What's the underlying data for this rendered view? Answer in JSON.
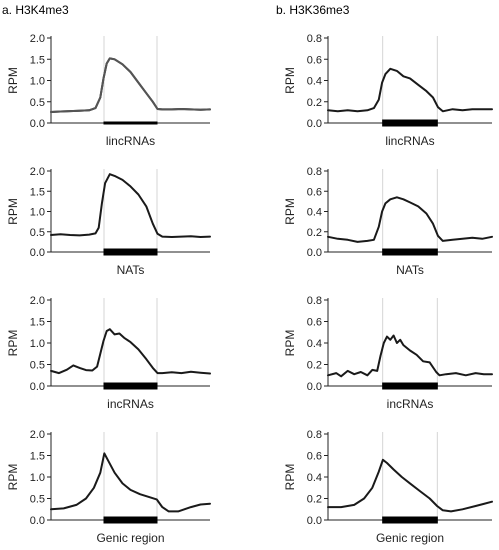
{
  "columns": [
    {
      "title": "a. H3K4me3"
    },
    {
      "title": "b. H3K36me3"
    }
  ],
  "colors": {
    "line": "#1a1a1a",
    "line_highlight": "#555555",
    "axis": "#222222",
    "grid": "#d6d6d6",
    "region": "#000000"
  },
  "chart_data": [
    {
      "type": "line",
      "column": "a. H3K4me3",
      "xlabel": "lincRNAs",
      "ylabel": "RPM",
      "ylim": [
        0,
        2.0
      ],
      "yticks": [
        "0.0",
        "0.5",
        "1.0",
        "1.5",
        "2.0"
      ],
      "region": [
        0.3333,
        0.6667
      ],
      "region_thickness": "thin",
      "line_color": "#555555",
      "x": [
        0,
        0.06,
        0.12,
        0.18,
        0.24,
        0.28,
        0.31,
        0.33,
        0.35,
        0.37,
        0.4,
        0.45,
        0.5,
        0.55,
        0.6,
        0.64,
        0.67,
        0.7,
        0.76,
        0.82,
        0.88,
        0.94,
        1.0
      ],
      "y": [
        0.26,
        0.27,
        0.28,
        0.29,
        0.3,
        0.35,
        0.6,
        1.05,
        1.4,
        1.52,
        1.5,
        1.38,
        1.2,
        0.95,
        0.7,
        0.5,
        0.33,
        0.32,
        0.32,
        0.33,
        0.32,
        0.31,
        0.32
      ]
    },
    {
      "type": "line",
      "column": "b. H3K36me3",
      "xlabel": "lincRNAs",
      "ylabel": "RPM",
      "ylim": [
        0,
        0.8
      ],
      "yticks": [
        "0.0",
        "0.2",
        "0.4",
        "0.6",
        "0.8"
      ],
      "region": [
        0.3333,
        0.6667
      ],
      "region_thickness": "thick",
      "x": [
        0,
        0.06,
        0.12,
        0.18,
        0.24,
        0.28,
        0.31,
        0.33,
        0.35,
        0.38,
        0.42,
        0.46,
        0.5,
        0.55,
        0.6,
        0.64,
        0.67,
        0.7,
        0.76,
        0.82,
        0.88,
        0.94,
        1.0
      ],
      "y": [
        0.12,
        0.11,
        0.12,
        0.11,
        0.12,
        0.14,
        0.22,
        0.38,
        0.46,
        0.51,
        0.49,
        0.44,
        0.42,
        0.36,
        0.3,
        0.24,
        0.15,
        0.11,
        0.13,
        0.12,
        0.13,
        0.13,
        0.13
      ]
    },
    {
      "type": "line",
      "column": "a. H3K4me3",
      "xlabel": "NATs",
      "ylabel": "RPM",
      "ylim": [
        0,
        2.0
      ],
      "yticks": [
        "0.0",
        "0.5",
        "1.0",
        "1.5",
        "2.0"
      ],
      "region": [
        0.3333,
        0.6667
      ],
      "region_thickness": "thick",
      "x": [
        0,
        0.06,
        0.12,
        0.18,
        0.24,
        0.28,
        0.3,
        0.32,
        0.34,
        0.37,
        0.4,
        0.45,
        0.5,
        0.55,
        0.6,
        0.64,
        0.67,
        0.7,
        0.76,
        0.82,
        0.88,
        0.94,
        1.0
      ],
      "y": [
        0.42,
        0.44,
        0.42,
        0.41,
        0.43,
        0.46,
        0.6,
        1.2,
        1.7,
        1.92,
        1.88,
        1.78,
        1.62,
        1.42,
        1.12,
        0.7,
        0.45,
        0.38,
        0.37,
        0.38,
        0.39,
        0.37,
        0.38
      ]
    },
    {
      "type": "line",
      "column": "b. H3K36me3",
      "xlabel": "NATs",
      "ylabel": "RPM",
      "ylim": [
        0,
        0.8
      ],
      "yticks": [
        "0.0",
        "0.2",
        "0.4",
        "0.6",
        "0.8"
      ],
      "region": [
        0.3333,
        0.6667
      ],
      "region_thickness": "thick",
      "x": [
        0,
        0.06,
        0.12,
        0.18,
        0.24,
        0.28,
        0.31,
        0.33,
        0.35,
        0.38,
        0.42,
        0.46,
        0.5,
        0.55,
        0.6,
        0.64,
        0.67,
        0.7,
        0.76,
        0.82,
        0.88,
        0.94,
        1.0
      ],
      "y": [
        0.15,
        0.13,
        0.12,
        0.1,
        0.11,
        0.12,
        0.25,
        0.4,
        0.48,
        0.52,
        0.54,
        0.52,
        0.49,
        0.45,
        0.38,
        0.28,
        0.16,
        0.11,
        0.12,
        0.13,
        0.14,
        0.13,
        0.15
      ]
    },
    {
      "type": "line",
      "column": "a. H3K4me3",
      "xlabel": "incRNAs",
      "ylabel": "RPM",
      "ylim": [
        0,
        2.0
      ],
      "yticks": [
        "0.0",
        "0.5",
        "1.0",
        "1.5",
        "2.0"
      ],
      "region": [
        0.3333,
        0.6667
      ],
      "region_thickness": "thick",
      "x": [
        0,
        0.05,
        0.1,
        0.14,
        0.18,
        0.22,
        0.26,
        0.29,
        0.31,
        0.33,
        0.35,
        0.37,
        0.4,
        0.43,
        0.46,
        0.5,
        0.55,
        0.6,
        0.64,
        0.67,
        0.7,
        0.76,
        0.82,
        0.88,
        0.94,
        1.0
      ],
      "y": [
        0.35,
        0.3,
        0.38,
        0.48,
        0.42,
        0.37,
        0.36,
        0.45,
        0.75,
        1.05,
        1.28,
        1.32,
        1.2,
        1.22,
        1.12,
        1.02,
        0.85,
        0.62,
        0.42,
        0.3,
        0.3,
        0.32,
        0.3,
        0.33,
        0.31,
        0.29
      ]
    },
    {
      "type": "line",
      "column": "b. H3K36me3",
      "xlabel": "incRNAs",
      "ylabel": "RPM",
      "ylim": [
        0,
        0.8
      ],
      "yticks": [
        "0.0",
        "0.2",
        "0.4",
        "0.6",
        "0.8"
      ],
      "region": [
        0.3333,
        0.6667
      ],
      "region_thickness": "thick",
      "x": [
        0,
        0.05,
        0.08,
        0.12,
        0.16,
        0.2,
        0.24,
        0.27,
        0.3,
        0.32,
        0.34,
        0.36,
        0.38,
        0.4,
        0.42,
        0.44,
        0.46,
        0.5,
        0.54,
        0.58,
        0.62,
        0.66,
        0.68,
        0.72,
        0.78,
        0.84,
        0.9,
        0.95,
        1.0
      ],
      "y": [
        0.1,
        0.12,
        0.09,
        0.14,
        0.11,
        0.13,
        0.1,
        0.15,
        0.14,
        0.28,
        0.4,
        0.46,
        0.43,
        0.47,
        0.4,
        0.43,
        0.38,
        0.33,
        0.29,
        0.23,
        0.22,
        0.13,
        0.1,
        0.11,
        0.12,
        0.1,
        0.12,
        0.11,
        0.11
      ]
    },
    {
      "type": "line",
      "column": "a. H3K4me3",
      "xlabel": "Genic region",
      "ylabel": "RPM",
      "ylim": [
        0,
        2.0
      ],
      "yticks": [
        "0.0",
        "0.5",
        "1.0",
        "1.5",
        "2.0"
      ],
      "region": [
        0.3333,
        0.6667
      ],
      "region_thickness": "thick",
      "x": [
        0,
        0.08,
        0.16,
        0.22,
        0.27,
        0.31,
        0.335,
        0.36,
        0.4,
        0.45,
        0.5,
        0.56,
        0.62,
        0.665,
        0.7,
        0.74,
        0.8,
        0.88,
        0.94,
        1.0
      ],
      "y": [
        0.25,
        0.27,
        0.35,
        0.5,
        0.75,
        1.1,
        1.55,
        1.38,
        1.1,
        0.85,
        0.7,
        0.6,
        0.53,
        0.48,
        0.3,
        0.2,
        0.2,
        0.3,
        0.36,
        0.38
      ]
    },
    {
      "type": "line",
      "column": "b. H3K36me3",
      "xlabel": "Genic region",
      "ylabel": "RPM",
      "ylim": [
        0,
        0.8
      ],
      "yticks": [
        "0.0",
        "0.2",
        "0.4",
        "0.6",
        "0.8"
      ],
      "region": [
        0.3333,
        0.6667
      ],
      "region_thickness": "thick",
      "x": [
        0,
        0.08,
        0.16,
        0.22,
        0.27,
        0.31,
        0.335,
        0.36,
        0.4,
        0.45,
        0.5,
        0.56,
        0.62,
        0.665,
        0.7,
        0.75,
        0.82,
        0.9,
        0.95,
        1.0
      ],
      "y": [
        0.12,
        0.12,
        0.14,
        0.2,
        0.3,
        0.45,
        0.56,
        0.53,
        0.47,
        0.4,
        0.34,
        0.27,
        0.2,
        0.13,
        0.09,
        0.08,
        0.1,
        0.13,
        0.15,
        0.17
      ]
    }
  ]
}
